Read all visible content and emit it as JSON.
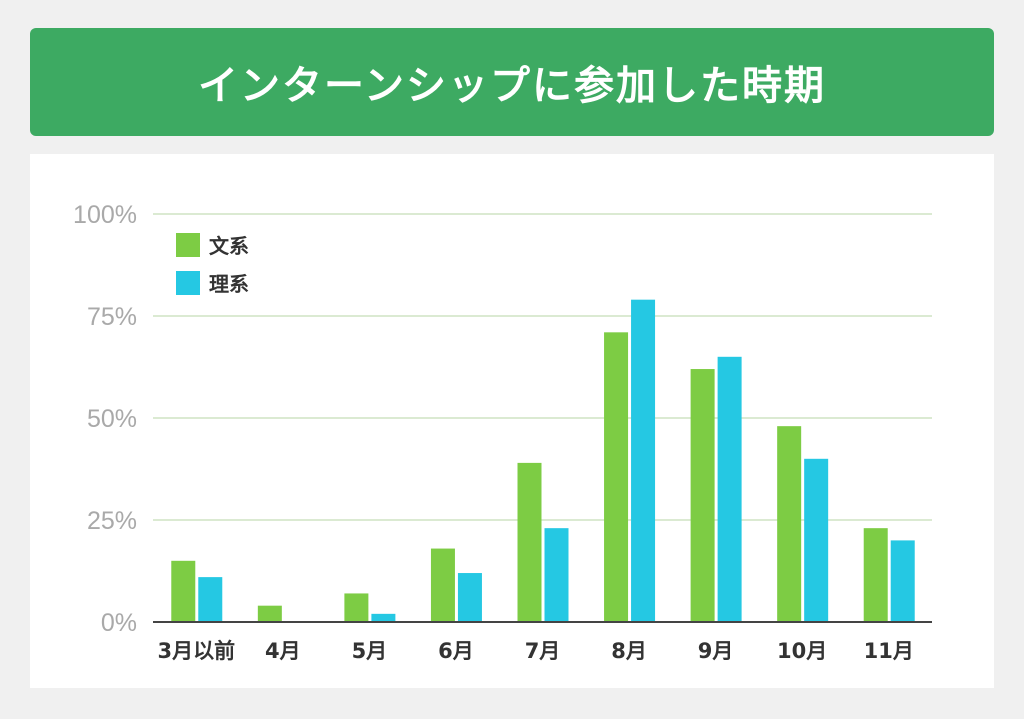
{
  "header": {
    "title": "インターンシップに参加した時期"
  },
  "chart_data": {
    "type": "bar",
    "title": "インターンシップに参加した時期",
    "categories": [
      "3月以前",
      "4月",
      "5月",
      "6月",
      "7月",
      "8月",
      "9月",
      "10月",
      "11月"
    ],
    "series": [
      {
        "name": "文系",
        "color": "#7dcc44",
        "values": [
          15,
          4,
          7,
          18,
          39,
          71,
          62,
          48,
          23
        ]
      },
      {
        "name": "理系",
        "color": "#25c8e3",
        "values": [
          11,
          0,
          2,
          12,
          23,
          79,
          65,
          40,
          20
        ]
      }
    ],
    "yticks": [
      "0%",
      "25%",
      "50%",
      "75%",
      "100%"
    ],
    "ylim": [
      0,
      100
    ],
    "grid": true,
    "legend_position": "top-left"
  }
}
